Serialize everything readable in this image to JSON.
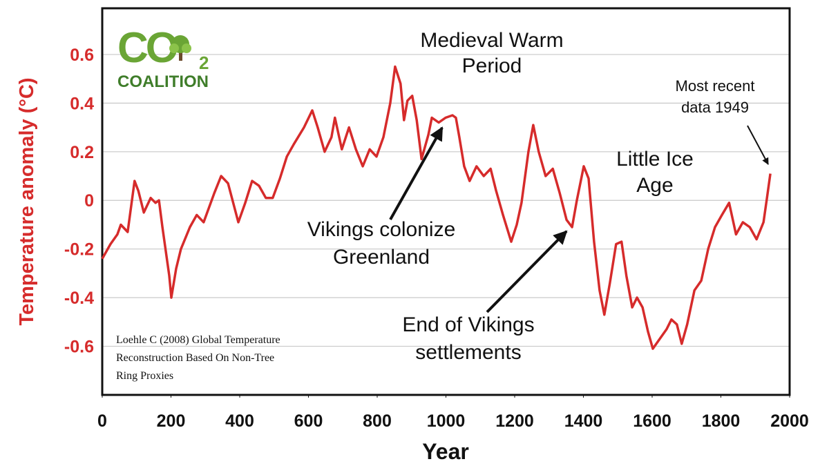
{
  "chart_data": {
    "type": "line",
    "y_label": "Temperature anomaly (°C)",
    "x_label": "Year",
    "color": "#d62b2b",
    "grid": true,
    "xlim": [
      0,
      2000
    ],
    "xticks": [
      0,
      200,
      400,
      600,
      800,
      1000,
      1200,
      1400,
      1600,
      1800,
      2000
    ],
    "ylim": [
      -0.8,
      0.79
    ],
    "yticks": [
      0.6,
      0.4,
      0.2,
      0,
      -0.2,
      -0.4,
      -0.6
    ],
    "x": [
      0,
      24,
      44,
      54,
      74,
      94,
      105,
      121,
      141,
      155,
      165,
      175,
      195,
      201,
      215,
      229,
      255,
      275,
      295,
      326,
      346,
      366,
      396,
      416,
      436,
      456,
      476,
      496,
      517,
      537,
      557,
      587,
      611,
      627,
      647,
      667,
      677,
      697,
      718,
      738,
      758,
      778,
      798,
      818,
      838,
      852,
      868,
      878,
      888,
      902,
      915,
      929,
      949,
      959,
      979,
      999,
      1019,
      1029,
      1039,
      1053,
      1069,
      1089,
      1110,
      1130,
      1146,
      1166,
      1190,
      1206,
      1220,
      1240,
      1254,
      1270,
      1290,
      1311,
      1331,
      1351,
      1367,
      1381,
      1401,
      1415,
      1431,
      1447,
      1461,
      1477,
      1495,
      1511,
      1525,
      1542,
      1556,
      1572,
      1588,
      1602,
      1622,
      1642,
      1656,
      1672,
      1686,
      1702,
      1723,
      1743,
      1763,
      1783,
      1803,
      1824,
      1844,
      1864,
      1884,
      1904,
      1924,
      1934,
      1944
    ],
    "values": [
      -0.24,
      -0.18,
      -0.14,
      -0.1,
      -0.13,
      0.08,
      0.04,
      -0.05,
      0.01,
      -0.01,
      0.0,
      -0.11,
      -0.31,
      -0.4,
      -0.28,
      -0.2,
      -0.11,
      -0.06,
      -0.09,
      0.03,
      0.1,
      0.07,
      -0.09,
      -0.01,
      0.08,
      0.06,
      0.01,
      0.01,
      0.09,
      0.18,
      0.23,
      0.3,
      0.37,
      0.3,
      0.2,
      0.26,
      0.34,
      0.21,
      0.3,
      0.21,
      0.14,
      0.21,
      0.18,
      0.26,
      0.4,
      0.55,
      0.48,
      0.33,
      0.41,
      0.43,
      0.33,
      0.17,
      0.27,
      0.34,
      0.32,
      0.34,
      0.35,
      0.34,
      0.26,
      0.14,
      0.08,
      0.14,
      0.1,
      0.13,
      0.04,
      -0.06,
      -0.17,
      -0.1,
      -0.01,
      0.2,
      0.31,
      0.2,
      0.1,
      0.13,
      0.03,
      -0.08,
      -0.11,
      0.0,
      0.14,
      0.09,
      -0.17,
      -0.37,
      -0.47,
      -0.34,
      -0.18,
      -0.17,
      -0.31,
      -0.44,
      -0.4,
      -0.44,
      -0.54,
      -0.61,
      -0.57,
      -0.53,
      -0.49,
      -0.51,
      -0.59,
      -0.51,
      -0.37,
      -0.33,
      -0.2,
      -0.11,
      -0.06,
      -0.01,
      -0.14,
      -0.09,
      -0.11,
      -0.16,
      -0.09,
      0.01,
      0.11
    ],
    "annotations": [
      {
        "lines": [
          "Medieval Warm",
          "Period"
        ]
      },
      {
        "lines": [
          "Vikings colonize",
          "Greenland"
        ]
      },
      {
        "lines": [
          "End of Vikings",
          "settlements"
        ]
      },
      {
        "lines": [
          "Little Ice",
          "Age"
        ]
      },
      {
        "lines": [
          "Most recent",
          "data 1949"
        ]
      }
    ],
    "citation": [
      "Loehle C (2008) Global Temperature",
      "Reconstruction Based On Non-Tree",
      "Ring Proxies"
    ]
  },
  "logo": {
    "main": "CO",
    "subscript": "2",
    "name": "COALITION"
  }
}
